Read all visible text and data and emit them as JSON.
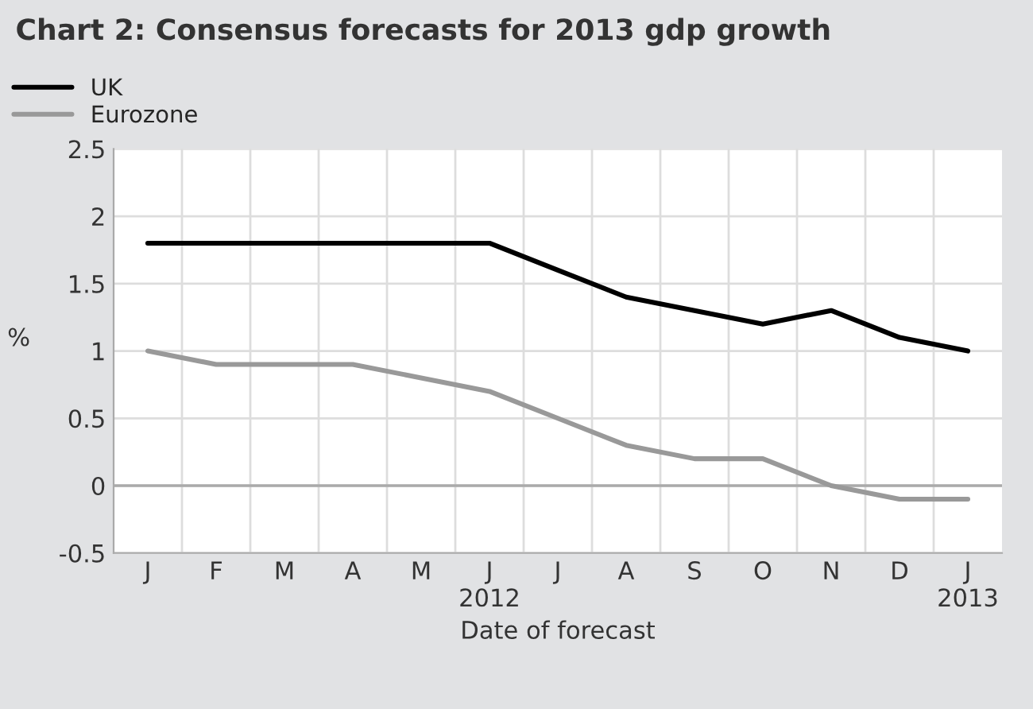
{
  "chart_data": {
    "type": "line",
    "title": "Chart 2: Consensus forecasts for 2013 gdp growth",
    "xlabel": "Date of forecast",
    "ylabel": "%",
    "categories": [
      "J",
      "F",
      "M",
      "A",
      "M",
      "J\n2012",
      "J",
      "A",
      "S",
      "O",
      "N",
      "D",
      "J\n2013"
    ],
    "series": [
      {
        "name": "UK",
        "color": "#000000",
        "values": [
          1.8,
          1.8,
          1.8,
          1.8,
          1.8,
          1.8,
          1.6,
          1.4,
          1.3,
          1.2,
          1.3,
          1.1,
          1.0
        ]
      },
      {
        "name": "Eurozone",
        "color": "#999999",
        "values": [
          1.0,
          0.9,
          0.9,
          0.9,
          0.8,
          0.7,
          0.5,
          0.3,
          0.2,
          0.2,
          0.0,
          -0.1,
          -0.1
        ]
      }
    ],
    "ylim": [
      -0.5,
      2.5
    ],
    "yticks": [
      {
        "value": -0.5,
        "label": "-0.5"
      },
      0,
      0.5,
      1,
      1.5,
      2,
      2.5
    ],
    "grid": true,
    "legend": "top left",
    "marker": "none",
    "line_style": "solid"
  }
}
